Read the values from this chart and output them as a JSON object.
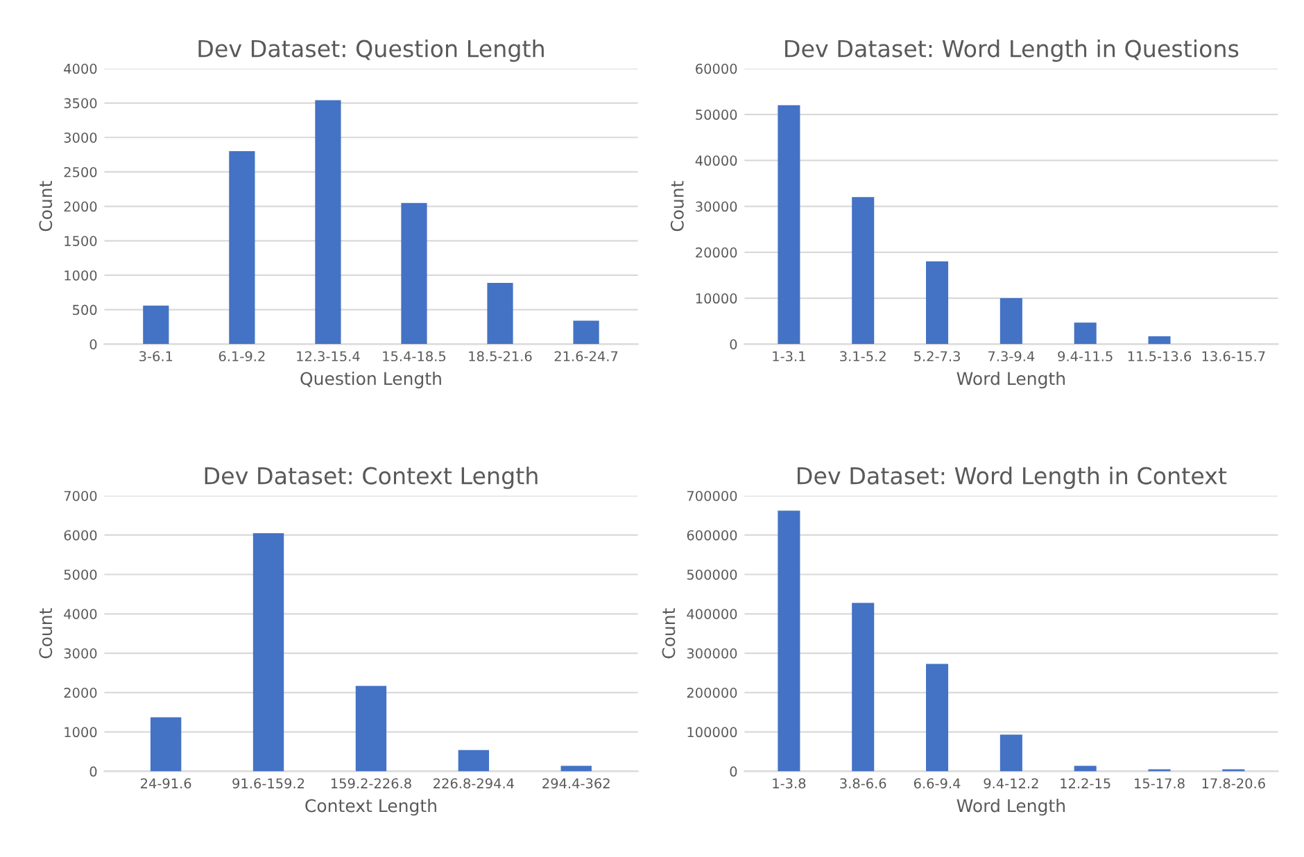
{
  "chart_data": [
    {
      "type": "bar",
      "title": "Dev Dataset: Question Length",
      "xlabel": "Question Length",
      "ylabel": "Count",
      "color": "#4472c4",
      "grid": "y",
      "categories": [
        "3-6.1",
        "6.1-9.2",
        "12.3-15.4",
        "15.4-18.5",
        "18.5-21.6",
        "21.6-24.7"
      ],
      "values": [
        560,
        2800,
        3540,
        2050,
        890,
        340
      ],
      "ylim": [
        0,
        4000
      ],
      "yticks": [
        0,
        500,
        1000,
        1500,
        2000,
        2500,
        3000,
        3500,
        4000
      ]
    },
    {
      "type": "bar",
      "title": "Dev Dataset: Word Length in Questions",
      "xlabel": "Word Length",
      "ylabel": "Count",
      "color": "#4472c4",
      "grid": "y",
      "categories": [
        "1-3.1",
        "3.1-5.2",
        "5.2-7.3",
        "7.3-9.4",
        "9.4-11.5",
        "11.5-13.6",
        "13.6-15.7"
      ],
      "values": [
        52000,
        32000,
        18000,
        10000,
        4700,
        1700,
        0
      ],
      "ylim": [
        0,
        60000
      ],
      "yticks": [
        0,
        10000,
        20000,
        30000,
        40000,
        50000,
        60000
      ]
    },
    {
      "type": "bar",
      "title": "Dev Dataset: Context Length",
      "xlabel": "Context Length",
      "ylabel": "Count",
      "color": "#4472c4",
      "grid": "y",
      "categories": [
        "24-91.6",
        "91.6-159.2",
        "159.2-226.8",
        "226.8-294.4",
        "294.4-362"
      ],
      "values": [
        1370,
        6050,
        2170,
        540,
        140
      ],
      "ylim": [
        0,
        7000
      ],
      "yticks": [
        0,
        1000,
        2000,
        3000,
        4000,
        5000,
        6000,
        7000
      ]
    },
    {
      "type": "bar",
      "title": "Dev Dataset: Word Length in Context",
      "xlabel": "Word Length",
      "ylabel": "Count",
      "color": "#4472c4",
      "grid": "y",
      "categories": [
        "1-3.8",
        "3.8-6.6",
        "6.6-9.4",
        "9.4-12.2",
        "12.2-15",
        "15-17.8",
        "17.8-20.6"
      ],
      "values": [
        662000,
        428000,
        273000,
        93000,
        14000,
        5000,
        5000
      ],
      "ylim": [
        0,
        700000
      ],
      "yticks": [
        0,
        100000,
        200000,
        300000,
        400000,
        500000,
        600000,
        700000
      ]
    }
  ]
}
